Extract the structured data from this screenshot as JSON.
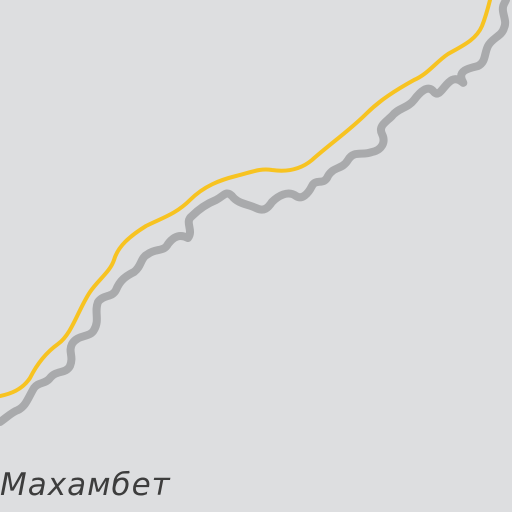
{
  "map": {
    "background_color": "#dddee0",
    "road_major_color": "#f7c321",
    "road_minor_color": "#a9aaac",
    "labels": {
      "settlement": "Махамбет"
    }
  }
}
